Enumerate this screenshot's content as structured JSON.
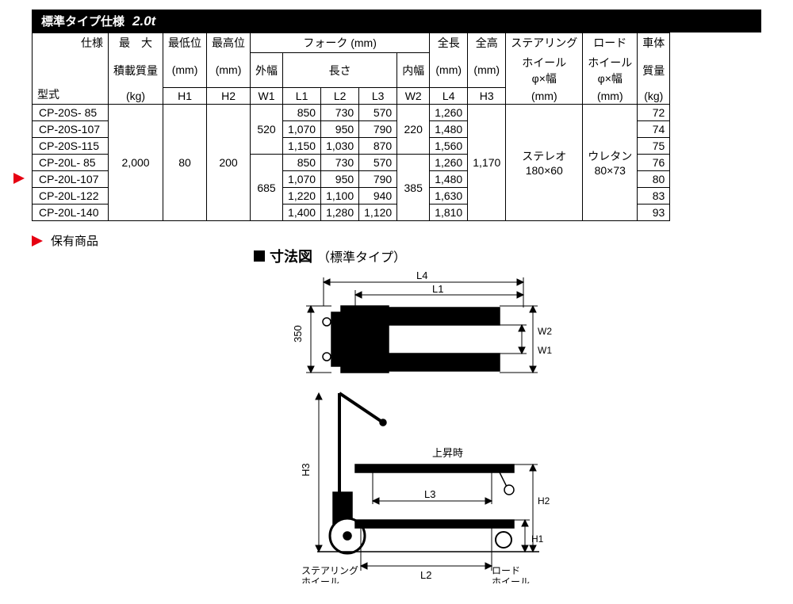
{
  "title": {
    "main": "標準タイプ仕様",
    "sub": "2.0t"
  },
  "legend": {
    "label": "保有商品"
  },
  "diagram": {
    "title_prefix": "■",
    "title": "寸法図",
    "paren": "（標準タイプ）",
    "labels": {
      "L4": "L4",
      "L1": "L1",
      "L2": "L2",
      "L3": "L3",
      "W1": "W1",
      "W2": "W2",
      "H1": "H1",
      "H2": "H2",
      "H3": "H3",
      "three_fifty": "350",
      "rise": "上昇時",
      "steering": "ステアリング\nホイール",
      "load": "ロード\nホイール"
    }
  },
  "table": {
    "headers": {
      "spec": "仕様",
      "model": "型式",
      "max_load_1": "最　大",
      "max_load_2": "積載質量",
      "max_load_unit": "(kg)",
      "low_1": "最低位",
      "low_unit": "(mm)",
      "low_sym": "H1",
      "high_1": "最高位",
      "high_unit": "(mm)",
      "high_sym": "H2",
      "fork": "フォーク (mm)",
      "outer": "外幅",
      "outer_sym": "W1",
      "length": "長さ",
      "L1": "L1",
      "L2": "L2",
      "L3": "L3",
      "inner": "内幅",
      "inner_sym": "W2",
      "total_len_1": "全長",
      "total_len_unit": "(mm)",
      "total_len_sym": "L4",
      "total_h_1": "全高",
      "total_h_unit": "(mm)",
      "total_h_sym": "H3",
      "steer_1": "ステアリング",
      "steer_2": "ホイール",
      "steer_3": "φ×幅",
      "steer_unit": "(mm)",
      "load_1": "ロード",
      "load_2": "ホイール",
      "load_3": "φ×幅",
      "load_unit": "(mm)",
      "weight_1": "車体",
      "weight_2": "質量",
      "weight_unit": "(kg)"
    },
    "shared": {
      "max_load": "2,000",
      "low": "80",
      "high": "200",
      "W1_top": "520",
      "W1_bot": "685",
      "W2_top": "220",
      "W2_bot": "385",
      "total_h": "1,170",
      "steer_1": "ステレオ",
      "steer_2": "180×60",
      "load_1": "ウレタン",
      "load_2": "80×73"
    },
    "rows": [
      {
        "model": "CP-20S-  85",
        "L1": "850",
        "L2": "730",
        "L3": "570",
        "L4": "1,260",
        "wt": "72",
        "marked": false
      },
      {
        "model": "CP-20S-107",
        "L1": "1,070",
        "L2": "950",
        "L3": "790",
        "L4": "1,480",
        "wt": "74",
        "marked": false
      },
      {
        "model": "CP-20S-115",
        "L1": "1,150",
        "L2": "1,030",
        "L3": "870",
        "L4": "1,560",
        "wt": "75",
        "marked": false
      },
      {
        "model": "CP-20L-  85",
        "L1": "850",
        "L2": "730",
        "L3": "570",
        "L4": "1,260",
        "wt": "76",
        "marked": false
      },
      {
        "model": "CP-20L-107",
        "L1": "1,070",
        "L2": "950",
        "L3": "790",
        "L4": "1,480",
        "wt": "80",
        "marked": true
      },
      {
        "model": "CP-20L-122",
        "L1": "1,220",
        "L2": "1,100",
        "L3": "940",
        "L4": "1,630",
        "wt": "83",
        "marked": false
      },
      {
        "model": "CP-20L-140",
        "L1": "1,400",
        "L2": "1,280",
        "L3": "1,120",
        "L4": "1,810",
        "wt": "93",
        "marked": false
      }
    ]
  }
}
